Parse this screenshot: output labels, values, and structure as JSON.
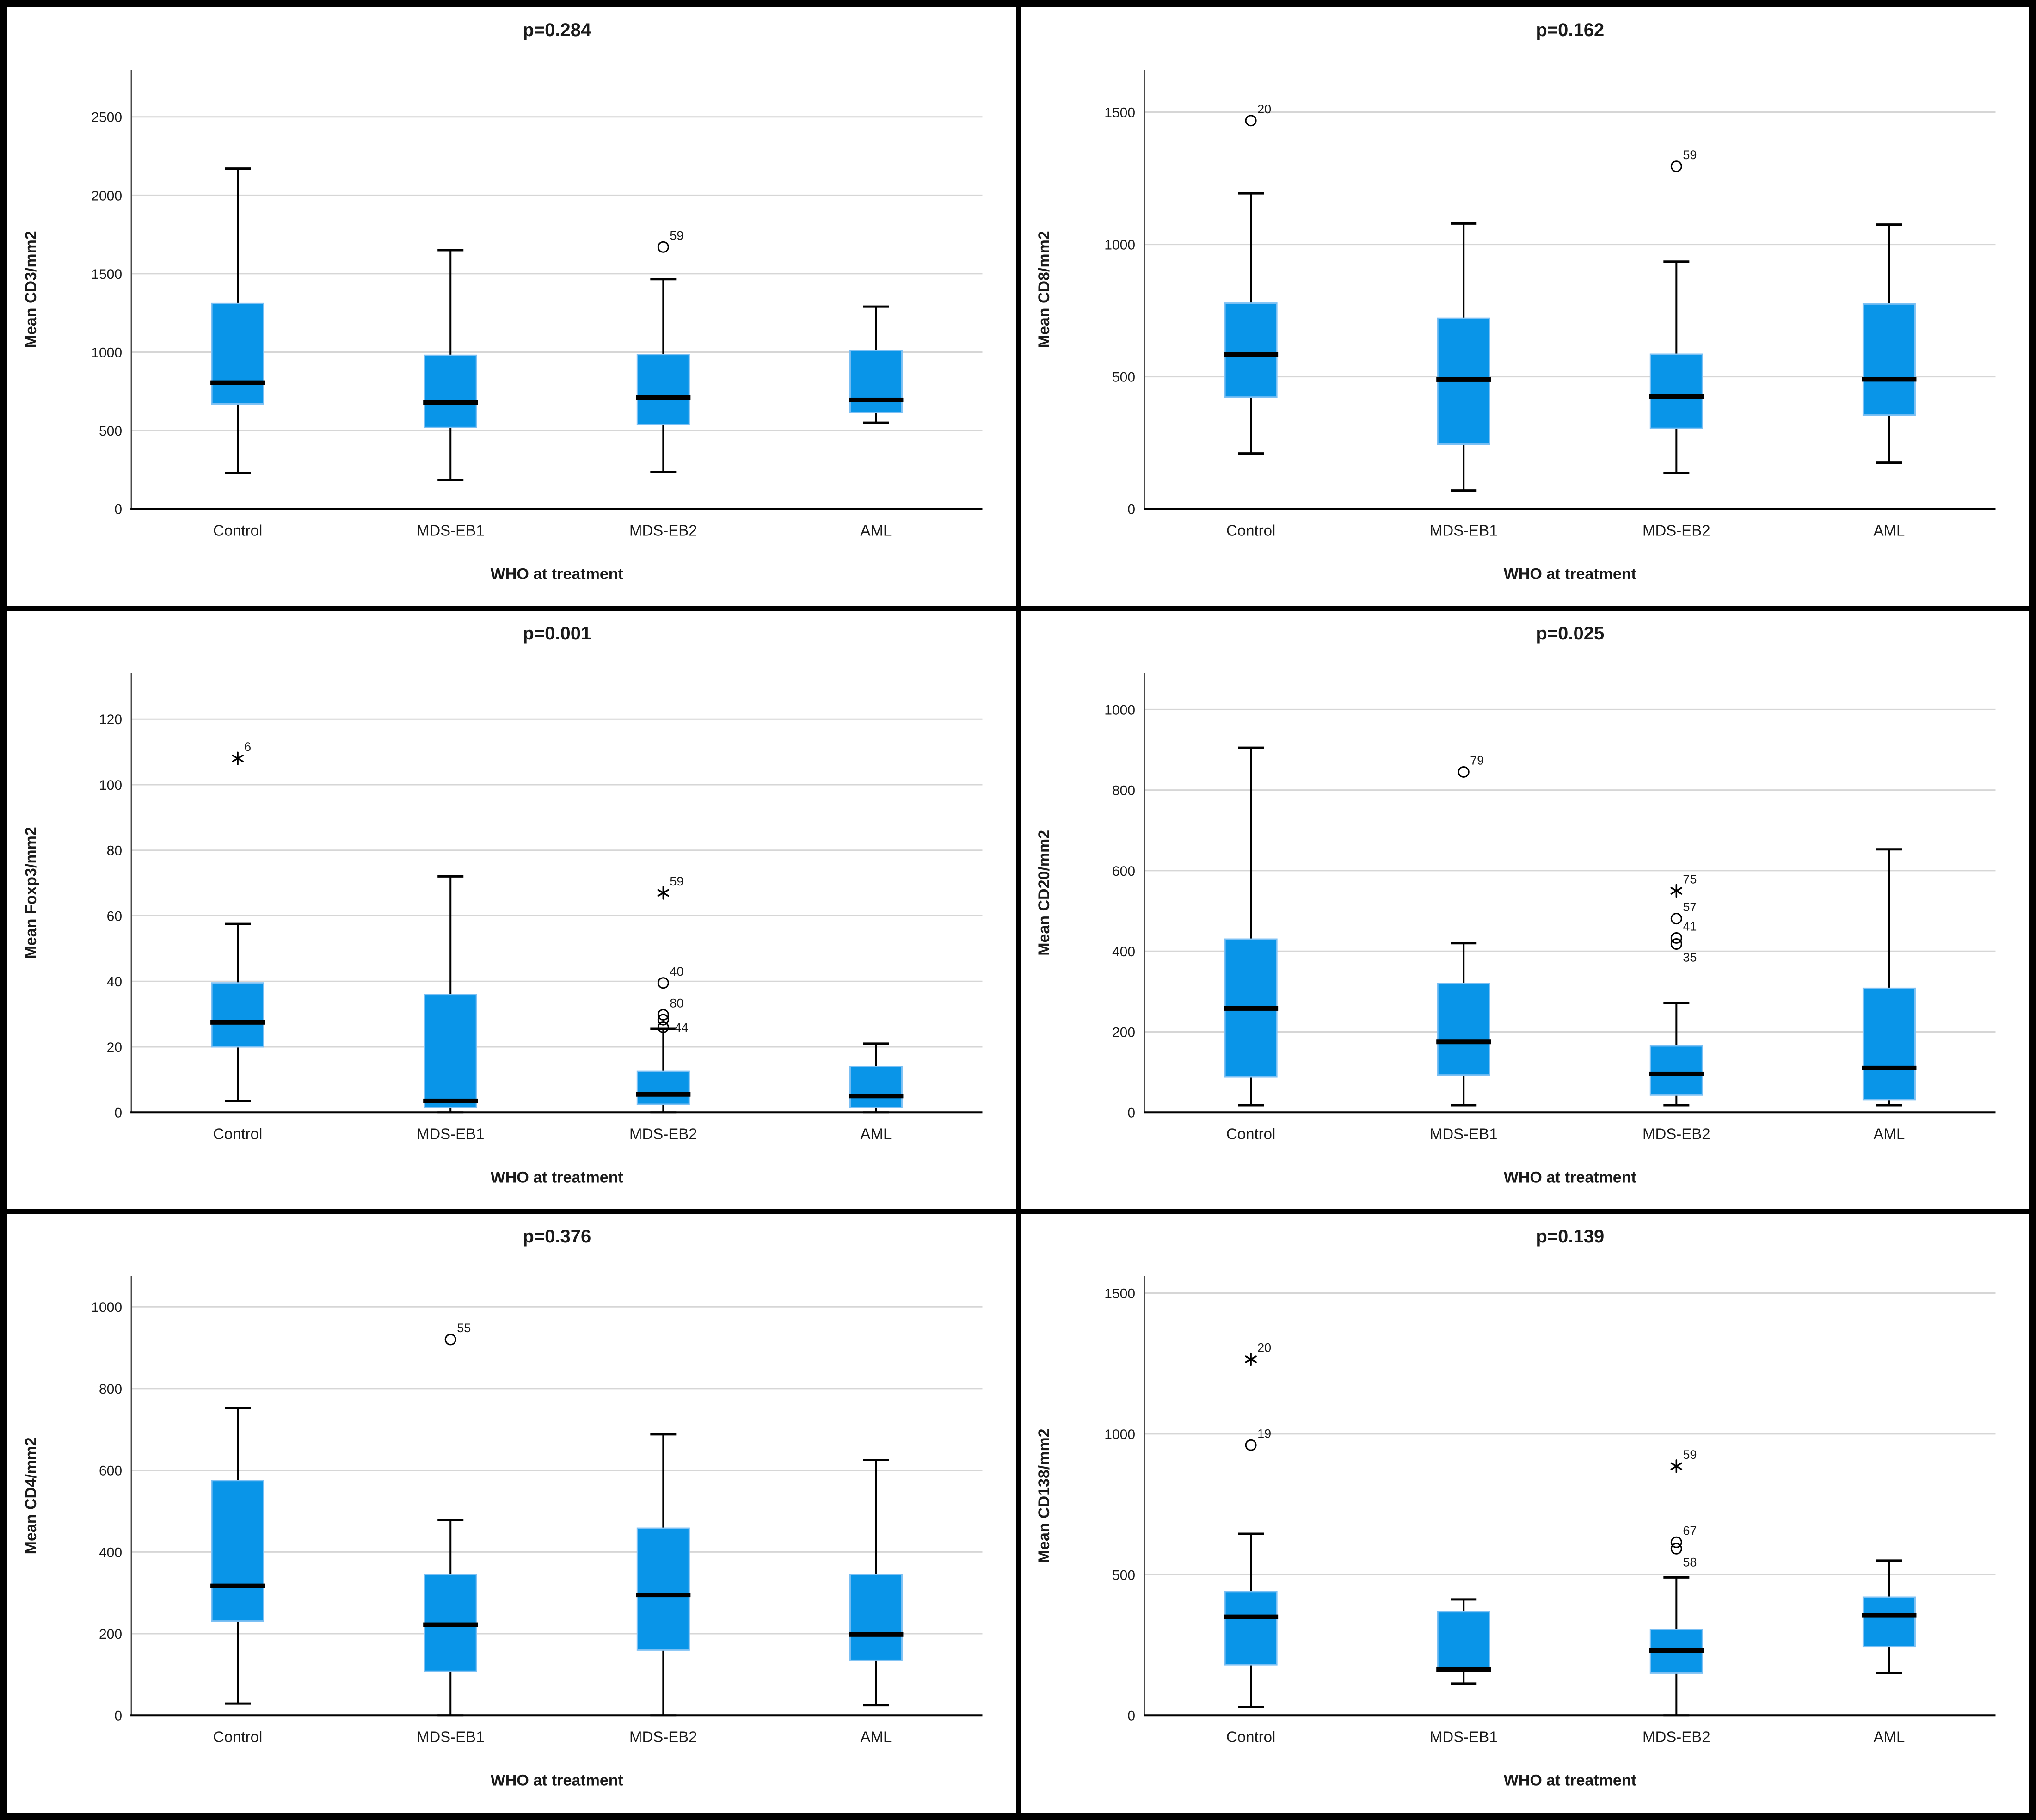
{
  "figure": {
    "x_axis_label": "WHO at treatment",
    "categories": [
      "Control",
      "MDS-EB1",
      "MDS-EB2",
      "AML"
    ],
    "colors": {
      "box_fill": "#0995e8",
      "box_edge": "#7cc0f4",
      "median": "#000000",
      "whisker": "#000000",
      "grid": "#d6d6d6",
      "y_axis": "#4a4a4a",
      "x_axis": "#000000",
      "text": "#1a1a1a"
    }
  },
  "chart_data": [
    {
      "type": "box",
      "title": "p=0.284",
      "ylabel": "Mean CD3/mm2",
      "xlabel": "WHO at treatment",
      "categories": [
        "Control",
        "MDS-EB1",
        "MDS-EB2",
        "AML"
      ],
      "yticks": [
        0,
        500,
        1000,
        1500,
        2000,
        2500
      ],
      "ylim": [
        0,
        2800
      ],
      "boxes": [
        {
          "category": "Control",
          "low": 230,
          "q1": 670,
          "median": 805,
          "q3": 1310,
          "high": 2170,
          "outliers": []
        },
        {
          "category": "MDS-EB1",
          "low": 185,
          "q1": 520,
          "median": 680,
          "q3": 980,
          "high": 1650,
          "outliers": []
        },
        {
          "category": "MDS-EB2",
          "low": 235,
          "q1": 540,
          "median": 710,
          "q3": 985,
          "high": 1465,
          "outliers": [
            {
              "v": 1670,
              "case": "59",
              "marker": "circle",
              "pos": "above"
            }
          ]
        },
        {
          "category": "AML",
          "low": 550,
          "q1": 615,
          "median": 695,
          "q3": 1010,
          "high": 1290,
          "outliers": []
        }
      ]
    },
    {
      "type": "box",
      "title": "p=0.162",
      "ylabel": "Mean CD8/mm2",
      "xlabel": "WHO at treatment",
      "categories": [
        "Control",
        "MDS-EB1",
        "MDS-EB2",
        "AML"
      ],
      "yticks": [
        0,
        500,
        1000,
        1500
      ],
      "ylim": [
        0,
        1660
      ],
      "boxes": [
        {
          "category": "Control",
          "low": 210,
          "q1": 423,
          "median": 584,
          "q3": 778,
          "high": 1193,
          "outliers": [
            {
              "v": 1468,
              "case": "20",
              "marker": "circle",
              "pos": "above"
            }
          ]
        },
        {
          "category": "MDS-EB1",
          "low": 70,
          "q1": 245,
          "median": 489,
          "q3": 721,
          "high": 1079,
          "outliers": []
        },
        {
          "category": "MDS-EB2",
          "low": 135,
          "q1": 305,
          "median": 425,
          "q3": 585,
          "high": 935,
          "outliers": [
            {
              "v": 1295,
              "case": "59",
              "marker": "circle",
              "pos": "above"
            }
          ]
        },
        {
          "category": "AML",
          "low": 175,
          "q1": 355,
          "median": 490,
          "q3": 775,
          "high": 1075,
          "outliers": []
        }
      ]
    },
    {
      "type": "box",
      "title": "p=0.001",
      "ylabel": "Mean Foxp3/mm2",
      "xlabel": "WHO at treatment",
      "categories": [
        "Control",
        "MDS-EB1",
        "MDS-EB2",
        "AML"
      ],
      "yticks": [
        0,
        20,
        40,
        60,
        80,
        100,
        120
      ],
      "ylim": [
        0,
        134
      ],
      "boxes": [
        {
          "category": "Control",
          "low": 3.5,
          "q1": 20,
          "median": 27.5,
          "q3": 39.5,
          "high": 57.5,
          "outliers": [
            {
              "v": 108,
              "case": "6",
              "marker": "star",
              "pos": "above"
            }
          ]
        },
        {
          "category": "MDS-EB1",
          "low": 0,
          "q1": 1.5,
          "median": 3.5,
          "q3": 36,
          "high": 72,
          "outliers": []
        },
        {
          "category": "MDS-EB2",
          "low": 0,
          "q1": 2.5,
          "median": 5.5,
          "q3": 12.5,
          "high": 25.5,
          "outliers": [
            {
              "v": 67,
              "case": "59",
              "marker": "star",
              "pos": "above"
            },
            {
              "v": 39.5,
              "case": "40",
              "marker": "circle",
              "pos": "above"
            },
            {
              "v": 29.8,
              "case": "80",
              "marker": "circle",
              "pos": "above"
            },
            {
              "v": 28.3,
              "case": "",
              "marker": "circle",
              "pos": "above"
            },
            {
              "v": 26,
              "case": "44",
              "marker": "circle",
              "pos": "right"
            }
          ]
        },
        {
          "category": "AML",
          "low": 0,
          "q1": 1.5,
          "median": 5,
          "q3": 14,
          "high": 21,
          "outliers": []
        }
      ]
    },
    {
      "type": "box",
      "title": "p=0.025",
      "ylabel": "Mean CD20/mm2",
      "xlabel": "WHO at treatment",
      "categories": [
        "Control",
        "MDS-EB1",
        "MDS-EB2",
        "AML"
      ],
      "yticks": [
        0,
        200,
        400,
        600,
        800,
        1000
      ],
      "ylim": [
        0,
        1090
      ],
      "boxes": [
        {
          "category": "Control",
          "low": 18,
          "q1": 88,
          "median": 258,
          "q3": 430,
          "high": 905,
          "outliers": []
        },
        {
          "category": "MDS-EB1",
          "low": 18,
          "q1": 93,
          "median": 175,
          "q3": 320,
          "high": 420,
          "outliers": [
            {
              "v": 845,
              "case": "79",
              "marker": "circle",
              "pos": "above"
            }
          ]
        },
        {
          "category": "MDS-EB2",
          "low": 18,
          "q1": 43,
          "median": 95,
          "q3": 165,
          "high": 272,
          "outliers": [
            {
              "v": 550,
              "case": "75",
              "marker": "star",
              "pos": "above"
            },
            {
              "v": 481,
              "case": "57",
              "marker": "circle",
              "pos": "above"
            },
            {
              "v": 433,
              "case": "41",
              "marker": "circle",
              "pos": "above"
            },
            {
              "v": 418,
              "case": "35",
              "marker": "circle",
              "pos": "below"
            }
          ]
        },
        {
          "category": "AML",
          "low": 18,
          "q1": 32,
          "median": 110,
          "q3": 308,
          "high": 653,
          "outliers": []
        }
      ]
    },
    {
      "type": "box",
      "title": "p=0.376",
      "ylabel": "Mean CD4/mm2",
      "xlabel": "WHO at treatment",
      "categories": [
        "Control",
        "MDS-EB1",
        "MDS-EB2",
        "AML"
      ],
      "yticks": [
        0,
        200,
        400,
        600,
        800,
        1000
      ],
      "ylim": [
        0,
        1075
      ],
      "boxes": [
        {
          "category": "Control",
          "low": 29,
          "q1": 231,
          "median": 317,
          "q3": 575,
          "high": 752,
          "outliers": []
        },
        {
          "category": "MDS-EB1",
          "low": 0,
          "q1": 108,
          "median": 222,
          "q3": 345,
          "high": 478,
          "outliers": [
            {
              "v": 920,
              "case": "55",
              "marker": "circle",
              "pos": "above"
            }
          ]
        },
        {
          "category": "MDS-EB2",
          "low": 0,
          "q1": 160,
          "median": 295,
          "q3": 458,
          "high": 688,
          "outliers": []
        },
        {
          "category": "AML",
          "low": 25,
          "q1": 135,
          "median": 198,
          "q3": 345,
          "high": 625,
          "outliers": []
        }
      ]
    },
    {
      "type": "box",
      "title": "p=0.139",
      "ylabel": "Mean CD138/mm2",
      "xlabel": "WHO at treatment",
      "categories": [
        "Control",
        "MDS-EB1",
        "MDS-EB2",
        "AML"
      ],
      "yticks": [
        0,
        500,
        1000,
        1500
      ],
      "ylim": [
        0,
        1560
      ],
      "boxes": [
        {
          "category": "Control",
          "low": 30,
          "q1": 180,
          "median": 350,
          "q3": 440,
          "high": 645,
          "outliers": [
            {
              "v": 1265,
              "case": "20",
              "marker": "star",
              "pos": "above"
            },
            {
              "v": 960,
              "case": "19",
              "marker": "circle",
              "pos": "above"
            }
          ]
        },
        {
          "category": "MDS-EB1",
          "low": 113,
          "q1": 157,
          "median": 163,
          "q3": 368,
          "high": 412,
          "outliers": []
        },
        {
          "category": "MDS-EB2",
          "low": 0,
          "q1": 150,
          "median": 230,
          "q3": 305,
          "high": 490,
          "outliers": [
            {
              "v": 885,
              "case": "59",
              "marker": "star",
              "pos": "above"
            },
            {
              "v": 615,
              "case": "67",
              "marker": "circle",
              "pos": "above"
            },
            {
              "v": 592,
              "case": "58",
              "marker": "circle",
              "pos": "below"
            }
          ]
        },
        {
          "category": "AML",
          "low": 150,
          "q1": 245,
          "median": 355,
          "q3": 420,
          "high": 550,
          "outliers": []
        }
      ]
    }
  ]
}
